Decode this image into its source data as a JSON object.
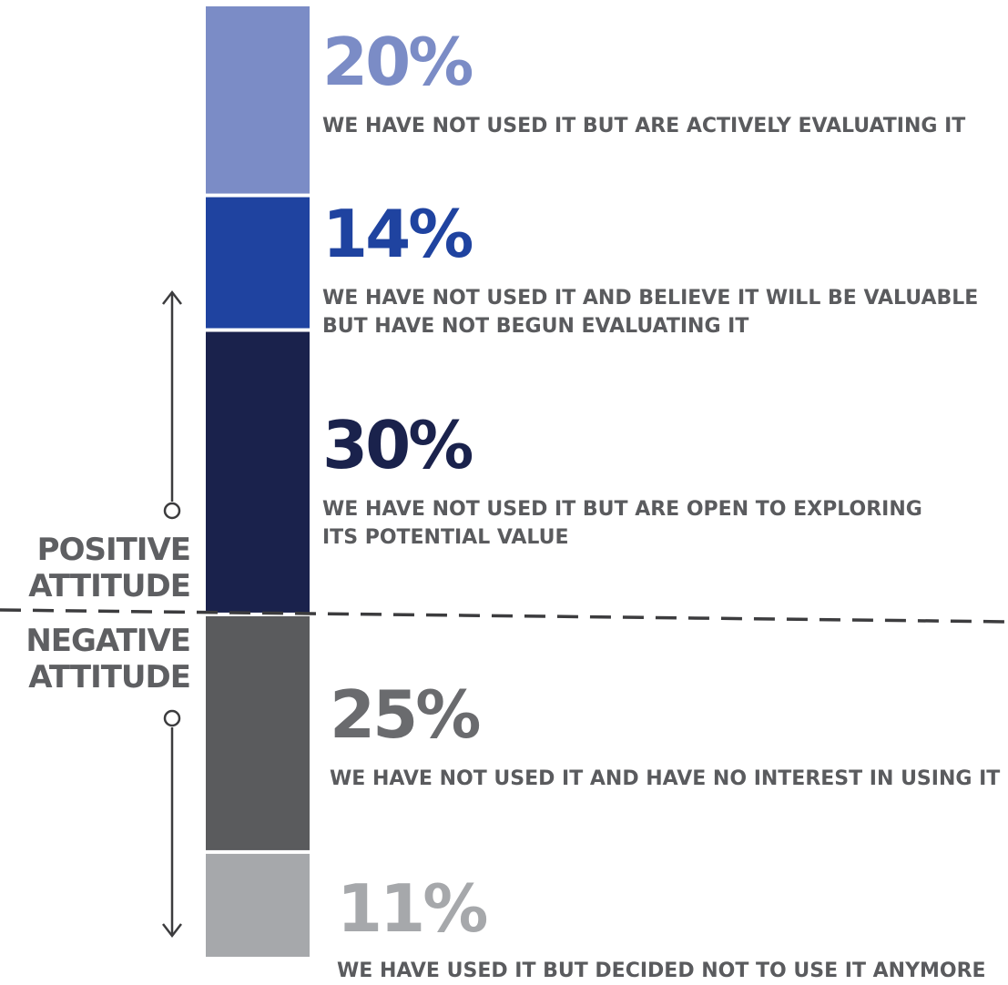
{
  "chart_data": {
    "type": "bar",
    "categories": [
      "WE HAVE NOT USED IT BUT ARE ACTIVELY EVALUATING IT",
      "WE HAVE NOT USED IT AND BELIEVE IT WILL BE VALUABLE BUT HAVE NOT BEGUN EVALUATING IT",
      "WE HAVE NOT USED IT BUT ARE OPEN TO EXPLORING ITS POTENTIAL VALUE",
      "WE HAVE NOT USED IT AND HAVE NO INTEREST IN USING IT",
      "WE HAVE USED IT BUT DECIDED NOT TO USE IT ANYMORE"
    ],
    "values": [
      20,
      14,
      30,
      25,
      11
    ],
    "segments": [
      {
        "value": 20,
        "pct_label": "20%",
        "label": "WE HAVE NOT USED IT BUT ARE ACTIVELY EVALUATING IT",
        "color": "#7b8cc6",
        "group": "positive"
      },
      {
        "value": 14,
        "pct_label": "14%",
        "label": "WE HAVE NOT USED IT AND BELIEVE IT WILL BE VALUABLE\nBUT HAVE NOT BEGUN EVALUATING IT",
        "color": "#1f43a0",
        "group": "positive"
      },
      {
        "value": 30,
        "pct_label": "30%",
        "label": "WE HAVE NOT USED IT BUT ARE OPEN TO EXPLORING\nITS POTENTIAL VALUE",
        "color": "#1a224c",
        "group": "positive"
      },
      {
        "value": 25,
        "pct_label": "25%",
        "label": "WE HAVE NOT USED IT AND HAVE NO INTEREST IN USING IT",
        "color": "#5a5b5d",
        "group": "negative"
      },
      {
        "value": 11,
        "pct_label": "11%",
        "label": "WE HAVE USED IT BUT DECIDED NOT TO USE IT ANYMORE",
        "color": "#a6a8ab",
        "group": "negative"
      }
    ],
    "groups": {
      "positive_label": "POSITIVE\nATTITUDE",
      "negative_label": "NEGATIVE\nATTITUDE"
    },
    "stacked": true,
    "orientation": "vertical",
    "legend": "none",
    "grid": false
  }
}
